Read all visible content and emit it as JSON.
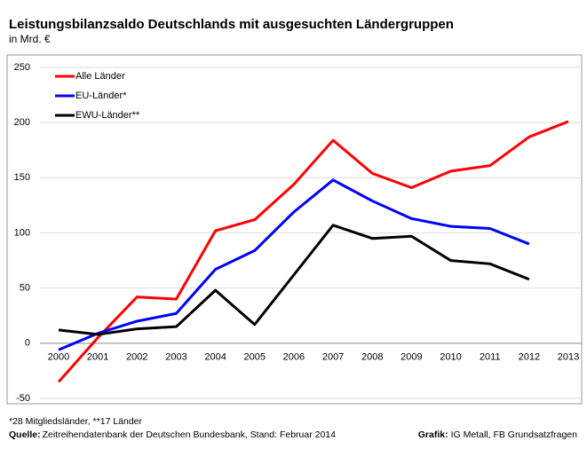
{
  "chart_data": {
    "type": "line",
    "title": "Leistungsbilanzsaldo Deutschlands mit ausgesuchten Ländergruppen",
    "subtitle": "in Mrd. €",
    "categories": [
      "2000",
      "2001",
      "2002",
      "2003",
      "2004",
      "2005",
      "2006",
      "2007",
      "2008",
      "2009",
      "2010",
      "2011",
      "2012",
      "2013"
    ],
    "series": [
      {
        "name": "Alle Länder",
        "color": "#ff0000",
        "values": [
          -35,
          5,
          42,
          40,
          102,
          112,
          144,
          184,
          154,
          141,
          156,
          161,
          187,
          201
        ]
      },
      {
        "name": "EU-Länder*",
        "color": "#0000ff",
        "values": [
          -6,
          9,
          20,
          27,
          67,
          84,
          119,
          148,
          129,
          113,
          106,
          104,
          90,
          null
        ]
      },
      {
        "name": "EWU-Länder**",
        "color": "#000000",
        "values": [
          12,
          8,
          13,
          15,
          48,
          17,
          62,
          107,
          95,
          97,
          75,
          72,
          58,
          null
        ]
      }
    ],
    "ylim": [
      -50,
      250
    ],
    "yticks": [
      -50,
      0,
      50,
      100,
      150,
      200,
      250
    ],
    "grid": true,
    "legend": "top-left",
    "footnote": "*28 Mitgliedsländer, **17 Länder",
    "source_label": "Quelle:",
    "source": "Zeitreihendatenbank  der Deutschen Bundesbank, Stand: Februar 2014",
    "credit_label": "Grafik:",
    "credit": "IG Metall, FB Grundsatzfragen"
  }
}
